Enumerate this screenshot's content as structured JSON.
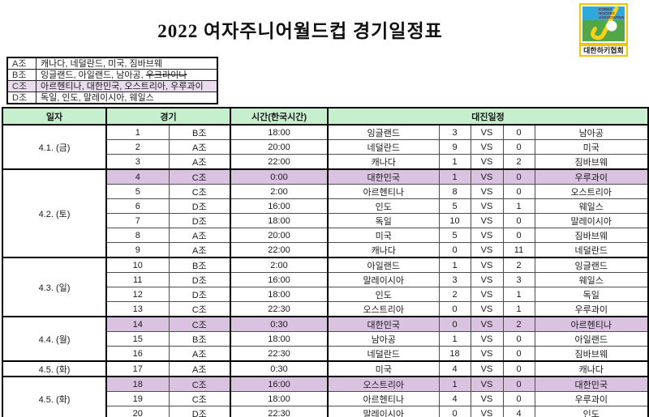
{
  "title": "2022 여자주니어월드컵 경기일정표",
  "logo": {
    "org_lines": [
      "KOREA",
      "HOCKEY",
      "ASSOCIATION"
    ],
    "caption": "대한하키협회"
  },
  "legend": {
    "rows": [
      {
        "label": "A조",
        "highlight": false,
        "teams": [
          {
            "name": "캐나다",
            "struck": false
          },
          {
            "name": "네덜란드",
            "struck": false
          },
          {
            "name": "미국",
            "struck": false
          },
          {
            "name": "짐바브웨",
            "struck": false
          }
        ]
      },
      {
        "label": "B조",
        "highlight": false,
        "teams": [
          {
            "name": "잉글랜드",
            "struck": false
          },
          {
            "name": "아일랜드",
            "struck": false
          },
          {
            "name": "남아공",
            "struck": false
          },
          {
            "name": "우크라이나",
            "struck": true
          }
        ]
      },
      {
        "label": "C조",
        "highlight": true,
        "teams": [
          {
            "name": "아르헨티나",
            "struck": false
          },
          {
            "name": "대한민국",
            "struck": false
          },
          {
            "name": "오스트리아",
            "struck": false
          },
          {
            "name": "우루과이",
            "struck": false
          }
        ]
      },
      {
        "label": "D조",
        "highlight": false,
        "teams": [
          {
            "name": "독일",
            "struck": false
          },
          {
            "name": "인도",
            "struck": false
          },
          {
            "name": "말레이시아",
            "struck": false
          },
          {
            "name": "웨일스",
            "struck": false
          }
        ]
      }
    ]
  },
  "schedule": {
    "headers": {
      "date": "일자",
      "match": "경기",
      "time": "시간(한국시간)",
      "fixture": "대진일정"
    },
    "date_groups": [
      {
        "date": "4.1. (금)",
        "matches": [
          {
            "no": "1",
            "group": "B조",
            "time": "18:00",
            "home": "잉글랜드",
            "home_score": "3",
            "vs": "VS",
            "away_score": "0",
            "away": "남아공",
            "highlight": false
          },
          {
            "no": "2",
            "group": "A조",
            "time": "20:00",
            "home": "네덜란드",
            "home_score": "9",
            "vs": "VS",
            "away_score": "0",
            "away": "미국",
            "highlight": false
          },
          {
            "no": "3",
            "group": "A조",
            "time": "22:00",
            "home": "캐나다",
            "home_score": "1",
            "vs": "VS",
            "away_score": "2",
            "away": "짐바브웨",
            "highlight": false
          }
        ]
      },
      {
        "date": "4.2. (토)",
        "matches": [
          {
            "no": "4",
            "group": "C조",
            "time": "0:00",
            "home": "대한민국",
            "home_score": "1",
            "vs": "VS",
            "away_score": "0",
            "away": "우루과이",
            "highlight": true
          },
          {
            "no": "5",
            "group": "C조",
            "time": "2:00",
            "home": "아르헨티나",
            "home_score": "8",
            "vs": "VS",
            "away_score": "0",
            "away": "오스트리아",
            "highlight": false
          },
          {
            "no": "6",
            "group": "D조",
            "time": "16:00",
            "home": "인도",
            "home_score": "5",
            "vs": "VS",
            "away_score": "1",
            "away": "웨일스",
            "highlight": false
          },
          {
            "no": "7",
            "group": "D조",
            "time": "18:00",
            "home": "독일",
            "home_score": "10",
            "vs": "VS",
            "away_score": "0",
            "away": "말레이시아",
            "highlight": false
          },
          {
            "no": "8",
            "group": "A조",
            "time": "20:00",
            "home": "미국",
            "home_score": "5",
            "vs": "VS",
            "away_score": "0",
            "away": "짐바브웨",
            "highlight": false
          },
          {
            "no": "9",
            "group": "A조",
            "time": "22:00",
            "home": "캐나다",
            "home_score": "0",
            "vs": "VS",
            "away_score": "11",
            "away": "네덜란드",
            "highlight": false
          }
        ]
      },
      {
        "date": "4.3. (일)",
        "matches": [
          {
            "no": "10",
            "group": "B조",
            "time": "2:00",
            "home": "아일랜드",
            "home_score": "1",
            "vs": "VS",
            "away_score": "2",
            "away": "잉글랜드",
            "highlight": false
          },
          {
            "no": "11",
            "group": "D조",
            "time": "16:00",
            "home": "말레이시아",
            "home_score": "3",
            "vs": "VS",
            "away_score": "3",
            "away": "웨일스",
            "highlight": false
          },
          {
            "no": "12",
            "group": "D조",
            "time": "18:00",
            "home": "인도",
            "home_score": "2",
            "vs": "VS",
            "away_score": "1",
            "away": "독일",
            "highlight": false
          },
          {
            "no": "13",
            "group": "C조",
            "time": "22:30",
            "home": "오스트리아",
            "home_score": "0",
            "vs": "VS",
            "away_score": "1",
            "away": "우루과이",
            "highlight": false
          }
        ]
      },
      {
        "date": "4.4. (월)",
        "matches": [
          {
            "no": "14",
            "group": "C조",
            "time": "0:30",
            "home": "대한민국",
            "home_score": "0",
            "vs": "VS",
            "away_score": "2",
            "away": "아르헨티나",
            "highlight": true
          },
          {
            "no": "15",
            "group": "B조",
            "time": "18:00",
            "home": "남아공",
            "home_score": "1",
            "vs": "VS",
            "away_score": "0",
            "away": "아일랜드",
            "highlight": false
          },
          {
            "no": "16",
            "group": "A조",
            "time": "22:30",
            "home": "네덜란드",
            "home_score": "18",
            "vs": "VS",
            "away_score": "0",
            "away": "짐바브웨",
            "highlight": false
          }
        ]
      },
      {
        "date": "4.5. (화)",
        "matches": [
          {
            "no": "17",
            "group": "A조",
            "time": "0:30",
            "home": "미국",
            "home_score": "4",
            "vs": "VS",
            "away_score": "0",
            "away": "캐나다",
            "highlight": false
          }
        ]
      },
      {
        "date": "4.5. (화)",
        "matches": [
          {
            "no": "18",
            "group": "C조",
            "time": "16:00",
            "home": "오스트리아",
            "home_score": "1",
            "vs": "VS",
            "away_score": "0",
            "away": "대한민국",
            "highlight": true
          },
          {
            "no": "19",
            "group": "C조",
            "time": "18:00",
            "home": "아르헨티나",
            "home_score": "4",
            "vs": "VS",
            "away_score": "0",
            "away": "우루과이",
            "highlight": false
          },
          {
            "no": "20",
            "group": "D조",
            "time": "22:30",
            "home": "말레이시아",
            "home_score": "0",
            "vs": "VS",
            "away_score": "4",
            "away": "인도",
            "highlight": false
          }
        ]
      }
    ]
  },
  "colors": {
    "header_green": "#c6efce",
    "row_highlight": "#d9c3e1",
    "legend_highlight": "#e9dcef",
    "logo_blue": "#2fa8dc",
    "logo_green": "#53a648",
    "logo_yellow": "#f2c500"
  }
}
